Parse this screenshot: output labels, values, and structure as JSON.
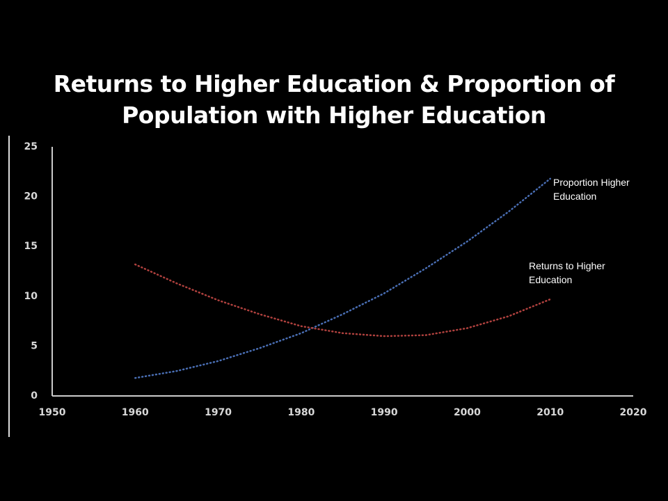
{
  "chart_data": {
    "type": "line",
    "title": "Returns to Higher Education & Proportion of Population with Higher Education",
    "x": [
      1960,
      1965,
      1970,
      1975,
      1980,
      1985,
      1990,
      1995,
      2000,
      2005,
      2010
    ],
    "series": [
      {
        "name": "Proportion Higher Education",
        "color": "#4a6fb5",
        "values": [
          1.8,
          2.5,
          3.5,
          4.8,
          6.3,
          8.2,
          10.3,
          12.8,
          15.5,
          18.5,
          21.8
        ]
      },
      {
        "name": "Returns to Higher Education",
        "color": "#b0413e",
        "values": [
          13.2,
          11.3,
          9.6,
          8.2,
          7.0,
          6.3,
          6.0,
          6.1,
          6.8,
          8.0,
          9.7
        ]
      }
    ],
    "xlim": [
      1950,
      2020
    ],
    "xticks": [
      1950,
      1960,
      1970,
      1980,
      1990,
      2000,
      2010,
      2020
    ],
    "ylim": [
      0,
      25
    ],
    "yticks": [
      0,
      5,
      10,
      15,
      20,
      25
    ]
  }
}
